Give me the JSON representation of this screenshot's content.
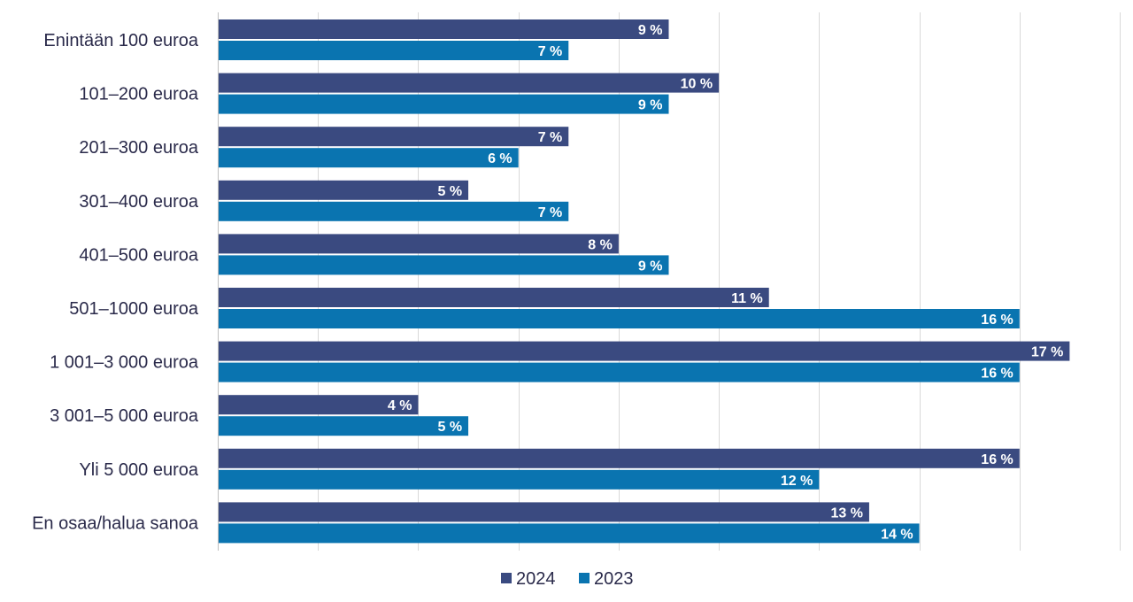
{
  "chart_data": {
    "type": "bar",
    "orientation": "horizontal",
    "categories": [
      "Enintään 100 euroa",
      "101–200 euroa",
      "201–300 euroa",
      "301–400 euroa",
      "401–500 euroa",
      "501–1000 euroa",
      "1 001–3 000 euroa",
      "3 001–5 000 euroa",
      "Yli 5 000 euroa",
      "En osaa/halua sanoa"
    ],
    "series": [
      {
        "name": "2024",
        "color": "#3a4a80",
        "values": [
          9,
          10,
          7,
          5,
          8,
          11,
          17,
          4,
          16,
          13
        ]
      },
      {
        "name": "2023",
        "color": "#0a74b0",
        "values": [
          7,
          9,
          6,
          7,
          9,
          16,
          16,
          5,
          12,
          14
        ]
      }
    ],
    "value_suffix": " %",
    "xlim": [
      0,
      18
    ],
    "x_gridlines": [
      0,
      2,
      4,
      6,
      8,
      10,
      12,
      14,
      16,
      18
    ],
    "grid": true,
    "legend": "bottom-center",
    "title": "",
    "xlabel": "",
    "ylabel": ""
  }
}
